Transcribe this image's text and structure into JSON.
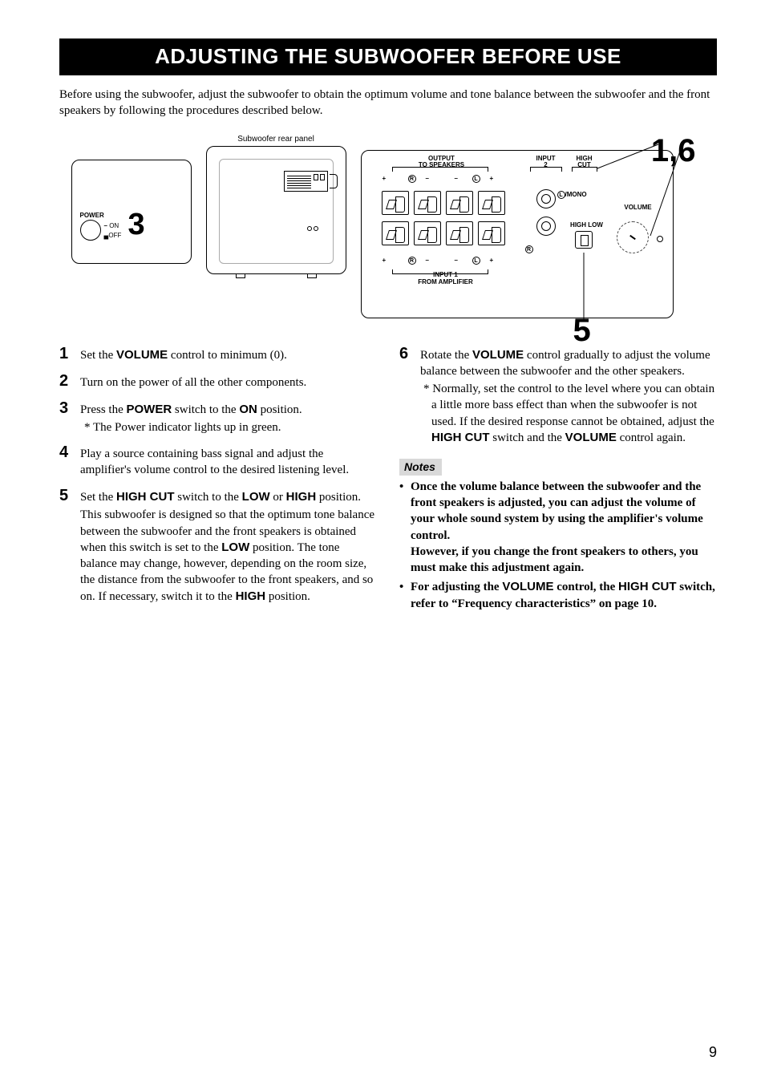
{
  "title": "ADJUSTING THE SUBWOOFER BEFORE USE",
  "intro": "Before using the subwoofer, adjust the subwoofer to obtain the optimum volume and tone balance between the subwoofer and the front speakers by following the procedures described below.",
  "diagram": {
    "caption_center": "Subwoofer rear panel",
    "left": {
      "power": "POWER",
      "on": "ON",
      "off": "OFF",
      "step_ref": "3"
    },
    "right": {
      "output_label": "OUTPUT\nTO SPEAKERS",
      "input2_label": "INPUT\n2",
      "high_cut_label": "HIGH\nCUT",
      "mono_label": "/MONO",
      "high_low_label": "HIGH LOW",
      "volume_label": "VOLUME",
      "input1_label": "INPUT 1\nFROM AMPLIFIER",
      "step_ref_16": "1,6",
      "step_ref_5": "5",
      "r": "R",
      "l": "L"
    }
  },
  "steps_left": [
    {
      "n": "1",
      "main": "Set the <b>VOLUME</b> control to minimum (0)."
    },
    {
      "n": "2",
      "main": "Turn on the power of all the other components."
    },
    {
      "n": "3",
      "main": "Press the <b>POWER</b> switch to the <b>ON</b> position.",
      "sub": "* The Power indicator lights up in green."
    },
    {
      "n": "4",
      "main": "Play a source containing bass signal and adjust the amplifier's volume control to the desired listening level."
    },
    {
      "n": "5",
      "main": "Set the <b>HIGH CUT</b> switch to the <b>LOW</b> or <b>HIGH</b> position.",
      "cont": "This subwoofer is designed so that the optimum tone balance between the subwoofer and the front speakers is obtained when this switch is set to the <b>LOW</b> position. The tone balance may change, however, depending on the room size, the distance from the subwoofer to the front speakers, and so on. If necessary, switch it to the <b>HIGH</b> position."
    }
  ],
  "steps_right": [
    {
      "n": "6",
      "main": "Rotate the <b>VOLUME</b> control gradually to adjust the volume balance between the subwoofer and the other speakers.",
      "sub": "* Normally, set the control to the level where you can obtain a little more bass effect than when the subwoofer is not used. If the desired response cannot be obtained, adjust the <b>HIGH CUT</b> switch and the <b>VOLUME</b> control again."
    }
  ],
  "notes_header": "Notes",
  "notes": [
    "Once the volume balance between the subwoofer and the front speakers is adjusted, you can adjust the volume of your whole sound system by using the amplifier's volume control.<br>However, if you change the front speakers to others, you must make this adjustment again.",
    "For adjusting the <span class=\"sans-bold\">VOLUME</span> control, the <span class=\"sans-bold\">HIGH CUT</span> switch, refer to “Frequency characteristics” on page 10."
  ],
  "page_number": "9",
  "style": {
    "title_bg": "#000000",
    "title_fg": "#ffffff",
    "notes_bg": "#d9d9d9"
  }
}
